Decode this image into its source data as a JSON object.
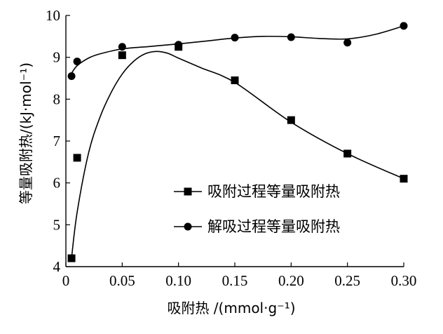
{
  "chart_data": {
    "type": "scatter",
    "xlabel": "吸附热 /(mmol·g⁻¹)",
    "ylabel": "等量吸附热/(kJ·mol⁻¹)",
    "xlim": [
      0,
      0.3
    ],
    "ylim": [
      4,
      10
    ],
    "x_ticks": [
      {
        "value": 0,
        "label": "0"
      },
      {
        "value": 0.05,
        "label": "0.05"
      },
      {
        "value": 0.1,
        "label": "0.10"
      },
      {
        "value": 0.15,
        "label": "0.15"
      },
      {
        "value": 0.2,
        "label": "0.20"
      },
      {
        "value": 0.25,
        "label": "0.25"
      },
      {
        "value": 0.3,
        "label": "0.30"
      }
    ],
    "y_ticks": [
      {
        "value": 4,
        "label": "4"
      },
      {
        "value": 5,
        "label": "5"
      },
      {
        "value": 6,
        "label": "6"
      },
      {
        "value": 7,
        "label": "7"
      },
      {
        "value": 8,
        "label": "8"
      },
      {
        "value": 9,
        "label": "9"
      },
      {
        "value": 10,
        "label": "10"
      }
    ],
    "grid": false,
    "legend_position": "right",
    "series": [
      {
        "name": "吸附过程等量吸附热",
        "marker": "square",
        "color": "#000000",
        "x": [
          0.005,
          0.01,
          0.05,
          0.1,
          0.15,
          0.2,
          0.25,
          0.3
        ],
        "y": [
          4.2,
          6.6,
          9.05,
          9.25,
          8.45,
          7.5,
          6.7,
          6.1
        ],
        "curve_x": [
          0.005,
          0.01,
          0.02,
          0.03,
          0.04,
          0.05,
          0.06,
          0.07,
          0.08,
          0.09,
          0.1,
          0.12,
          0.15,
          0.2,
          0.25,
          0.3
        ],
        "curve_y": [
          4.2,
          5.3,
          6.7,
          7.55,
          8.15,
          8.6,
          8.9,
          9.08,
          9.14,
          9.1,
          8.98,
          8.75,
          8.4,
          7.45,
          6.7,
          6.1
        ]
      },
      {
        "name": "解吸过程等量吸附热",
        "marker": "circle",
        "color": "#000000",
        "x": [
          0.005,
          0.01,
          0.05,
          0.1,
          0.15,
          0.2,
          0.25,
          0.3
        ],
        "y": [
          8.55,
          8.9,
          9.25,
          9.3,
          9.47,
          9.48,
          9.35,
          9.75
        ],
        "curve_x": [
          0.005,
          0.01,
          0.02,
          0.03,
          0.05,
          0.075,
          0.1,
          0.125,
          0.15,
          0.175,
          0.2,
          0.225,
          0.25,
          0.275,
          0.3
        ],
        "curve_y": [
          8.62,
          8.8,
          8.98,
          9.08,
          9.2,
          9.26,
          9.32,
          9.39,
          9.46,
          9.5,
          9.49,
          9.45,
          9.44,
          9.55,
          9.75
        ]
      }
    ]
  }
}
